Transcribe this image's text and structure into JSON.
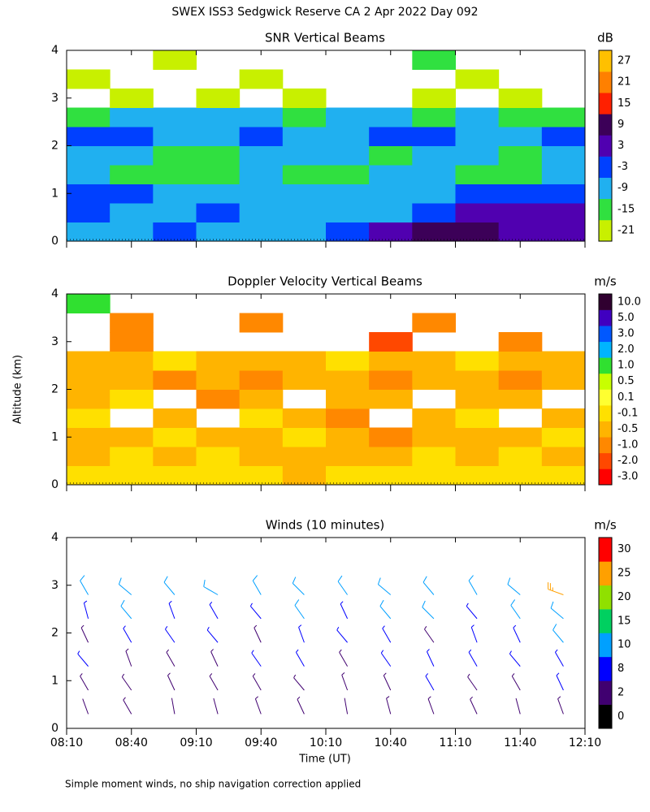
{
  "title": "SWEX ISS3 Sedgwick Reserve CA   2 Apr 2022 Day 092",
  "footnote": "Simple moment winds, no ship navigation correction applied",
  "chart_data": [
    {
      "type": "heatmap",
      "title": "SNR Vertical Beams",
      "ylim": [
        0,
        4
      ],
      "yticks": [
        0,
        1,
        2,
        3,
        4
      ],
      "x": [
        500,
        520,
        540,
        560,
        580,
        600,
        620,
        640,
        660,
        680,
        700,
        720
      ],
      "y": [
        0.2,
        0.6,
        1.0,
        1.4,
        1.8,
        2.2,
        2.6,
        3.0,
        3.4,
        3.8
      ],
      "z": [
        [
          -9,
          -9,
          -3,
          -9,
          -9,
          -9,
          -3,
          3,
          9,
          9,
          3,
          3
        ],
        [
          -3,
          -9,
          -9,
          -3,
          -9,
          -9,
          -9,
          -9,
          -3,
          3,
          3,
          3
        ],
        [
          -3,
          -3,
          -9,
          -9,
          -9,
          -9,
          -9,
          -9,
          -9,
          -3,
          -3,
          -3
        ],
        [
          -9,
          -15,
          -15,
          -15,
          -9,
          -15,
          -15,
          -9,
          -9,
          -15,
          -15,
          -9
        ],
        [
          -9,
          -9,
          -15,
          -15,
          -9,
          -9,
          -9,
          -15,
          -9,
          -9,
          -15,
          -9
        ],
        [
          -3,
          -3,
          -9,
          -9,
          -3,
          -9,
          -9,
          -3,
          -3,
          -9,
          -9,
          -3
        ],
        [
          -15,
          -9,
          -9,
          -9,
          -9,
          -15,
          -9,
          -9,
          -15,
          -9,
          -15,
          -15
        ],
        [
          null,
          -21,
          null,
          -21,
          null,
          -21,
          null,
          null,
          -21,
          null,
          -21,
          null
        ],
        [
          -21,
          null,
          null,
          null,
          -21,
          null,
          null,
          null,
          null,
          -21,
          null,
          null
        ],
        [
          null,
          null,
          -21,
          null,
          null,
          null,
          null,
          null,
          -15,
          null,
          null,
          null
        ]
      ],
      "colorbar": {
        "unit": "dB",
        "levels": [
          -21,
          -15,
          -9,
          -3,
          3,
          9,
          15,
          21,
          27
        ],
        "colors": [
          "#c8f000",
          "#30e040",
          "#20b0f0",
          "#0040ff",
          "#5000b0",
          "#3c0058",
          "#ff2000",
          "#ff8000",
          "#ffc000"
        ]
      }
    },
    {
      "type": "heatmap",
      "title": "Doppler Velocity Vertical Beams",
      "ylabel": "Altitude (km)",
      "ylim": [
        0,
        4
      ],
      "yticks": [
        0,
        1,
        2,
        3,
        4
      ],
      "x": [
        500,
        520,
        540,
        560,
        580,
        600,
        620,
        640,
        660,
        680,
        700,
        720
      ],
      "y": [
        0.2,
        0.6,
        1.0,
        1.4,
        1.8,
        2.2,
        2.6,
        3.0,
        3.4,
        3.8
      ],
      "z": [
        [
          -0.1,
          -0.1,
          -0.1,
          -0.1,
          -0.1,
          -0.5,
          -0.1,
          -0.1,
          -0.1,
          -0.1,
          -0.1,
          -0.1
        ],
        [
          -0.5,
          -0.1,
          -0.5,
          -0.1,
          -0.5,
          -0.5,
          -0.5,
          -0.5,
          -0.1,
          -0.5,
          -0.1,
          -0.5
        ],
        [
          -0.5,
          -0.5,
          -0.1,
          -0.5,
          -0.5,
          -0.1,
          -0.5,
          -1.0,
          -0.5,
          -0.5,
          -0.5,
          -0.1
        ],
        [
          -0.1,
          null,
          -0.5,
          null,
          -0.1,
          -0.5,
          -1.0,
          null,
          -0.5,
          -0.1,
          null,
          -0.5
        ],
        [
          -0.5,
          -0.1,
          null,
          -1.0,
          -0.5,
          null,
          -0.5,
          -0.5,
          null,
          -0.5,
          -0.5,
          null
        ],
        [
          -0.5,
          -0.5,
          -1.0,
          -0.5,
          -1.0,
          -0.5,
          -0.5,
          -1.0,
          -0.5,
          -0.5,
          -1.0,
          -0.5
        ],
        [
          -0.5,
          -0.5,
          -0.1,
          -0.5,
          -0.5,
          -0.5,
          -0.1,
          -0.5,
          -0.5,
          -0.1,
          -0.5,
          -0.5
        ],
        [
          null,
          -1.0,
          null,
          null,
          null,
          null,
          null,
          -2.0,
          null,
          null,
          -1.0,
          null
        ],
        [
          null,
          -1.0,
          null,
          null,
          -1.0,
          null,
          null,
          null,
          -1.0,
          null,
          null,
          null
        ],
        [
          1.0,
          null,
          null,
          null,
          null,
          null,
          null,
          null,
          null,
          null,
          null,
          null
        ]
      ],
      "colorbar": {
        "unit": "m/s",
        "levels": [
          {
            "value": -3,
            "label": "-3.0"
          },
          {
            "value": -2,
            "label": "-2.0"
          },
          {
            "value": -1,
            "label": "-1.0"
          },
          -0.5,
          -0.1,
          0.1,
          0.5,
          {
            "value": 1,
            "label": "1.0"
          },
          {
            "value": 2,
            "label": "2.0"
          },
          {
            "value": 3,
            "label": "3.0"
          },
          {
            "value": 5,
            "label": "5.0"
          },
          {
            "value": 10,
            "label": "10.0"
          }
        ],
        "colors": [
          "#ff0000",
          "#ff4800",
          "#ff8800",
          "#ffb400",
          "#ffe000",
          "#ffff30",
          "#c8ff00",
          "#30e030",
          "#00b4ff",
          "#0058ff",
          "#4000c0",
          "#300030"
        ]
      }
    },
    {
      "type": "barbs",
      "title": "Winds (10 minutes)",
      "xlabel": "Time (UT)",
      "ylim": [
        0,
        4
      ],
      "yticks": [
        0,
        1,
        2,
        3,
        4
      ],
      "xlim": [
        490,
        730
      ],
      "xticks": [
        {
          "value": 490,
          "label": "08:10"
        },
        {
          "value": 520,
          "label": "08:40"
        },
        {
          "value": 550,
          "label": "09:10"
        },
        {
          "value": 580,
          "label": "09:40"
        },
        {
          "value": 610,
          "label": "10:10"
        },
        {
          "value": 640,
          "label": "10:40"
        },
        {
          "value": 670,
          "label": "11:10"
        },
        {
          "value": 700,
          "label": "11:40"
        },
        {
          "value": 730,
          "label": "12:10"
        }
      ],
      "x": [
        500,
        500,
        500,
        500,
        500,
        500,
        520,
        520,
        520,
        520,
        520,
        520,
        540,
        540,
        540,
        540,
        540,
        540,
        560,
        560,
        560,
        560,
        560,
        560,
        580,
        580,
        580,
        580,
        580,
        580,
        600,
        600,
        600,
        600,
        600,
        600,
        620,
        620,
        620,
        620,
        620,
        620,
        640,
        640,
        640,
        640,
        640,
        640,
        660,
        660,
        660,
        660,
        660,
        660,
        680,
        680,
        680,
        680,
        680,
        680,
        700,
        700,
        700,
        700,
        700,
        700,
        720,
        720,
        720,
        720,
        720,
        720
      ],
      "y": [
        0.3,
        0.8,
        1.3,
        1.8,
        2.3,
        2.8,
        0.3,
        0.8,
        1.3,
        1.8,
        2.3,
        2.8,
        0.3,
        0.8,
        1.3,
        1.8,
        2.3,
        2.8,
        0.3,
        0.8,
        1.3,
        1.8,
        2.3,
        2.8,
        0.3,
        0.8,
        1.3,
        1.8,
        2.3,
        2.8,
        0.3,
        0.8,
        1.3,
        1.8,
        2.3,
        2.8,
        0.3,
        0.8,
        1.3,
        1.8,
        2.3,
        2.8,
        0.3,
        0.8,
        1.3,
        1.8,
        2.3,
        2.8,
        0.3,
        0.8,
        1.3,
        1.8,
        2.3,
        2.8,
        0.3,
        0.8,
        1.3,
        1.8,
        2.3,
        2.8,
        0.3,
        0.8,
        1.3,
        1.8,
        2.3,
        2.8,
        0.3,
        0.8,
        1.3,
        1.8,
        2.3,
        2.8
      ],
      "speed": [
        4,
        6,
        8,
        7,
        9,
        10,
        5,
        7,
        6,
        8,
        10,
        12,
        3,
        6,
        7,
        9,
        8,
        11,
        4,
        5,
        7,
        8,
        9,
        10,
        5,
        6,
        8,
        7,
        9,
        13,
        6,
        7,
        9,
        8,
        10,
        12,
        4,
        6,
        7,
        9,
        8,
        10,
        5,
        7,
        8,
        8,
        11,
        12,
        6,
        8,
        9,
        7,
        10,
        14,
        5,
        6,
        8,
        9,
        9,
        11,
        4,
        7,
        8,
        8,
        10,
        12,
        6,
        8,
        9,
        10,
        11,
        28
      ],
      "direction": [
        340,
        330,
        320,
        335,
        345,
        330,
        330,
        325,
        340,
        330,
        320,
        310,
        350,
        335,
        330,
        325,
        340,
        320,
        345,
        330,
        335,
        320,
        330,
        300,
        340,
        330,
        325,
        335,
        320,
        330,
        335,
        320,
        330,
        340,
        325,
        315,
        350,
        340,
        330,
        320,
        335,
        325,
        345,
        335,
        325,
        330,
        320,
        310,
        340,
        330,
        335,
        325,
        315,
        320,
        335,
        325,
        330,
        340,
        320,
        330,
        345,
        330,
        320,
        335,
        325,
        310,
        340,
        335,
        330,
        320,
        310,
        290
      ],
      "colorbar": {
        "unit": "m/s",
        "levels": [
          0,
          2,
          8,
          10,
          15,
          20,
          25,
          30
        ],
        "colors": [
          "#000000",
          "#400070",
          "#0000ff",
          "#00a0ff",
          "#00d060",
          "#90e000",
          "#ffa000",
          "#ff0000"
        ]
      }
    }
  ]
}
